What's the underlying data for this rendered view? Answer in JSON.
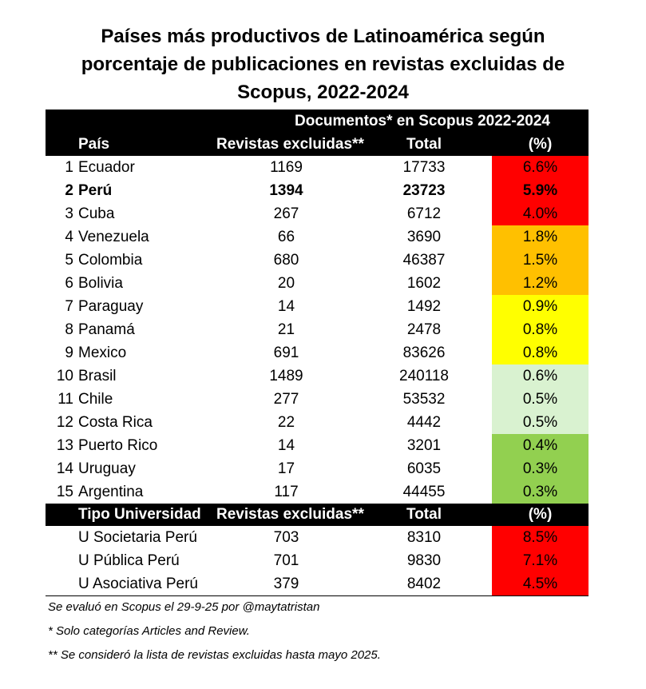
{
  "title": {
    "line1": "Países más productivos de Latinoamérica según",
    "line2": "porcentaje de publicaciones en revistas excluidas de",
    "line3": "Scopus, 2022-2024"
  },
  "header": {
    "group": "Documentos* en Scopus 2022-2024",
    "country": "País",
    "excluded": "Revistas excluidas**",
    "total": "Total",
    "pct": "(%)"
  },
  "countries": [
    {
      "rank": "1",
      "name": "Ecuador",
      "excluded": "1169",
      "total": "17733",
      "pct": "6.6%",
      "color": "#ff0000",
      "bold": false
    },
    {
      "rank": "2",
      "name": "Perú",
      "excluded": "1394",
      "total": "23723",
      "pct": "5.9%",
      "color": "#ff0000",
      "bold": true
    },
    {
      "rank": "3",
      "name": "Cuba",
      "excluded": "267",
      "total": "6712",
      "pct": "4.0%",
      "color": "#ff0000",
      "bold": false
    },
    {
      "rank": "4",
      "name": "Venezuela",
      "excluded": "66",
      "total": "3690",
      "pct": "1.8%",
      "color": "#ffc000",
      "bold": false
    },
    {
      "rank": "5",
      "name": "Colombia",
      "excluded": "680",
      "total": "46387",
      "pct": "1.5%",
      "color": "#ffc000",
      "bold": false
    },
    {
      "rank": "6",
      "name": "Bolivia",
      "excluded": "20",
      "total": "1602",
      "pct": "1.2%",
      "color": "#ffc000",
      "bold": false
    },
    {
      "rank": "7",
      "name": "Paraguay",
      "excluded": "14",
      "total": "1492",
      "pct": "0.9%",
      "color": "#ffff00",
      "bold": false
    },
    {
      "rank": "8",
      "name": "Panamá",
      "excluded": "21",
      "total": "2478",
      "pct": "0.8%",
      "color": "#ffff00",
      "bold": false
    },
    {
      "rank": "9",
      "name": "Mexico",
      "excluded": "691",
      "total": "83626",
      "pct": "0.8%",
      "color": "#ffff00",
      "bold": false
    },
    {
      "rank": "10",
      "name": "Brasil",
      "excluded": "1489",
      "total": "240118",
      "pct": "0.6%",
      "color": "#d9f2d0",
      "bold": false
    },
    {
      "rank": "11",
      "name": "Chile",
      "excluded": "277",
      "total": "53532",
      "pct": "0.5%",
      "color": "#d9f2d0",
      "bold": false
    },
    {
      "rank": "12",
      "name": "Costa Rica",
      "excluded": "22",
      "total": "4442",
      "pct": "0.5%",
      "color": "#d9f2d0",
      "bold": false
    },
    {
      "rank": "13",
      "name": "Puerto Rico",
      "excluded": "14",
      "total": "3201",
      "pct": "0.4%",
      "color": "#92d050",
      "bold": false
    },
    {
      "rank": "14",
      "name": "Uruguay",
      "excluded": "17",
      "total": "6035",
      "pct": "0.3%",
      "color": "#92d050",
      "bold": false
    },
    {
      "rank": "15",
      "name": "Argentina",
      "excluded": "117",
      "total": "44455",
      "pct": "0.3%",
      "color": "#92d050",
      "bold": false
    }
  ],
  "header2": {
    "type": "Tipo Universidad",
    "excluded": "Revistas excluidas**",
    "total": "Total",
    "pct": "(%)"
  },
  "universities": [
    {
      "name": "U Societaria Perú",
      "excluded": "703",
      "total": "8310",
      "pct": "8.5%",
      "color": "#ff0000"
    },
    {
      "name": "U Pública Perú",
      "excluded": "701",
      "total": "9830",
      "pct": "7.1%",
      "color": "#ff0000"
    },
    {
      "name": "U Asociativa Perú",
      "excluded": "379",
      "total": "8402",
      "pct": "4.5%",
      "color": "#ff0000"
    }
  ],
  "footnotes": {
    "source": "Se evaluó en Scopus el 29-9-25 por @maytatristan",
    "note1": "* Solo categorías Articles and Review.",
    "note2": "** Se consideró la lista de revistas excluidas hasta mayo 2025."
  }
}
